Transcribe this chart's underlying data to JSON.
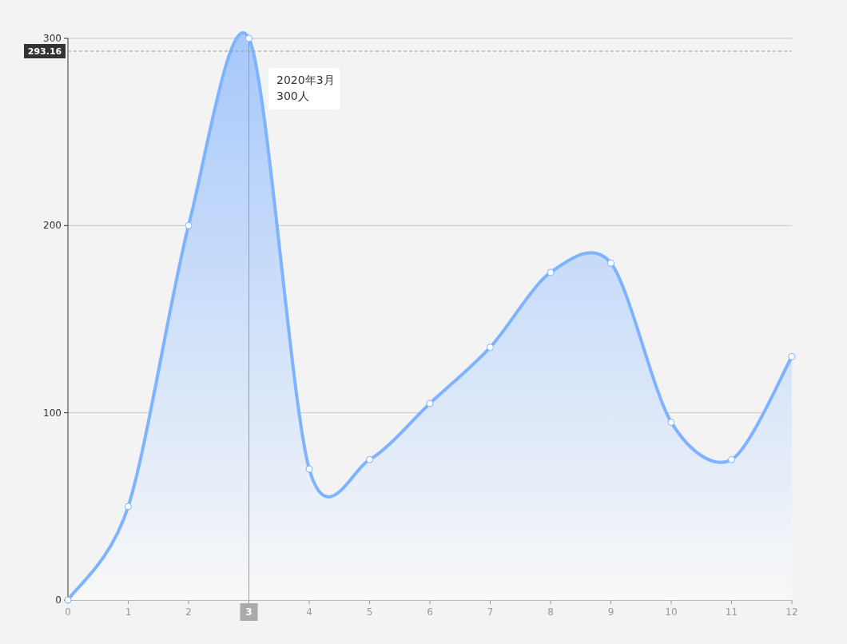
{
  "chart_data": {
    "type": "area",
    "x": [
      0,
      1,
      2,
      3,
      4,
      5,
      6,
      7,
      8,
      9,
      10,
      11,
      12
    ],
    "series": [
      {
        "color": "#7eb3ff",
        "values": [
          0,
          50,
          200,
          300,
          70,
          75,
          105,
          135,
          175,
          180,
          95,
          75,
          130
        ]
      }
    ],
    "xlim": [
      0,
      12
    ],
    "xticks": [
      0,
      1,
      2,
      3,
      4,
      5,
      6,
      7,
      8,
      9,
      10,
      11,
      12
    ],
    "ylim": [
      0,
      300
    ],
    "yticks": [
      0,
      100,
      200,
      300
    ],
    "grid": "y",
    "marker": "circle",
    "ref_lines": [
      {
        "axis": "y",
        "value": 293.16,
        "label": "293.16",
        "line_style": "dashed",
        "color": "#999999"
      },
      {
        "axis": "x",
        "value": 3,
        "label": "3",
        "line_style": "solid",
        "color": "#999999"
      }
    ],
    "annotations": [
      "2020年3月\n300人"
    ]
  }
}
